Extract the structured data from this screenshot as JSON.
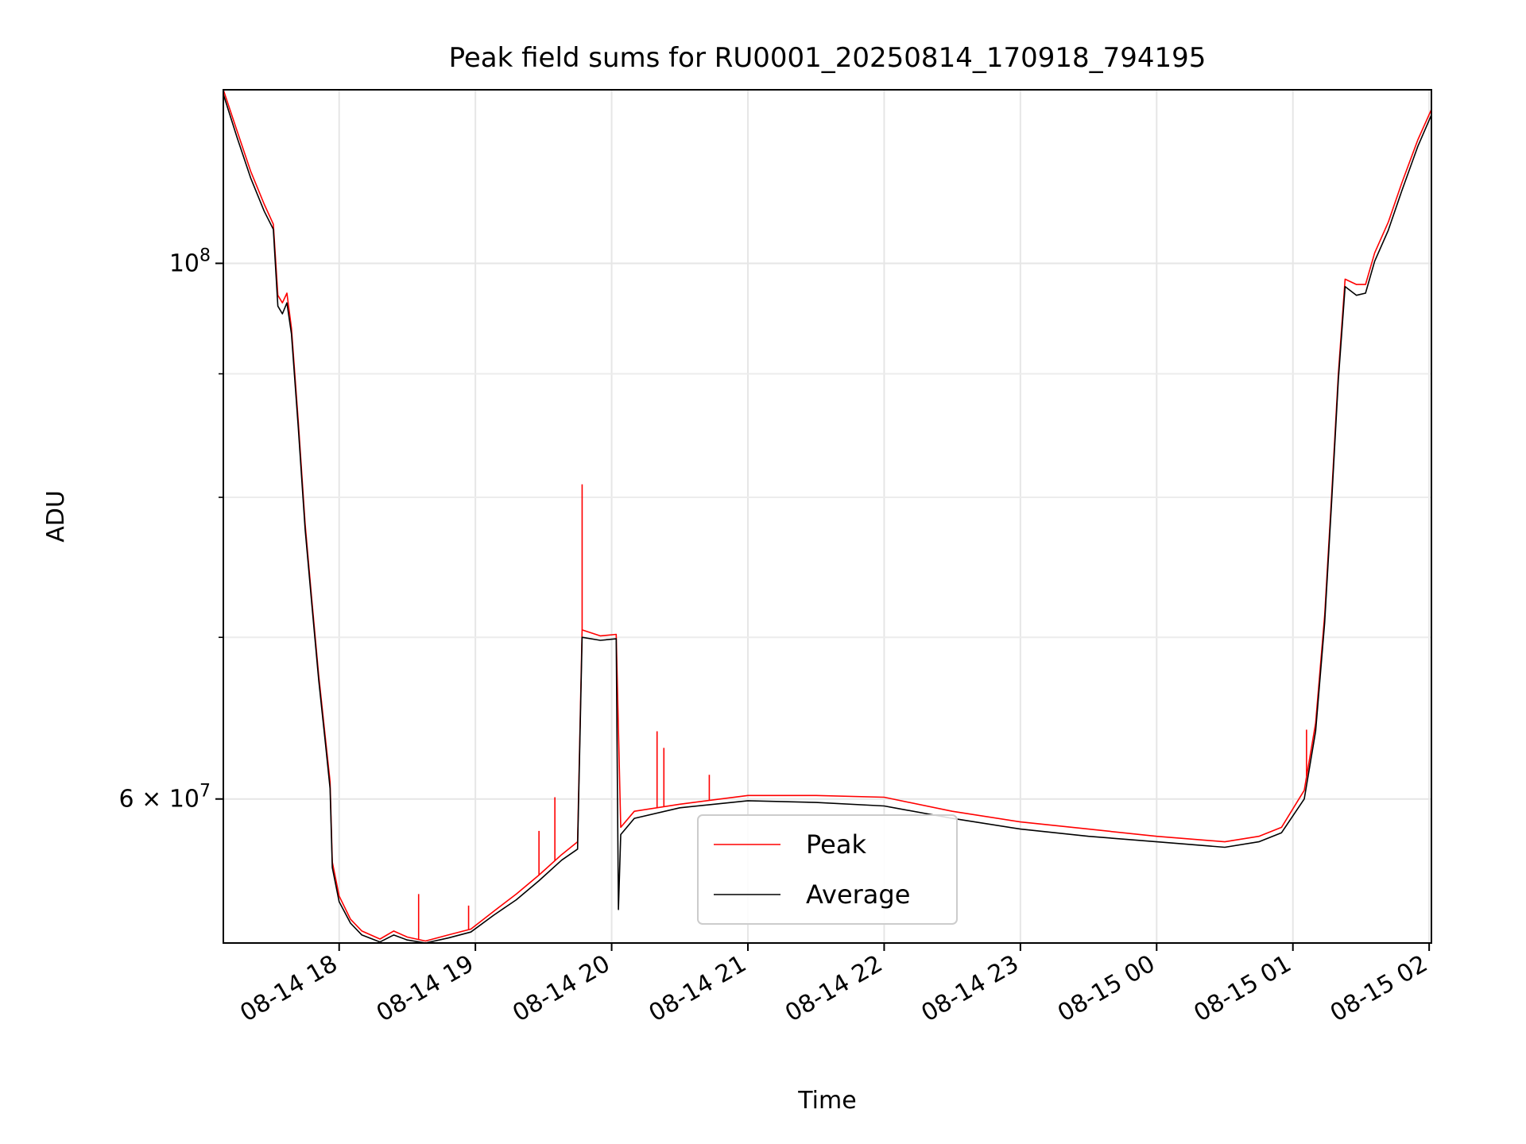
{
  "chart_data": {
    "type": "line",
    "title": "Peak field sums for RU0001_20250814_170918_794195",
    "xlabel": "Time",
    "ylabel": "ADU",
    "yscale": "log",
    "xlim": [
      "2025-08-14 17:09",
      "2025-08-15 02:01"
    ],
    "ylim": [
      52300000,
      118000000
    ],
    "x_ticks": [
      "08-14 18",
      "08-14 19",
      "08-14 20",
      "08-14 21",
      "08-14 22",
      "08-14 23",
      "08-15 00",
      "08-15 01",
      "08-15 02"
    ],
    "y_major_ticks": [
      {
        "value": 100000000,
        "label": "10^8"
      },
      {
        "value": 60000000,
        "label": "6 × 10^7"
      }
    ],
    "y_minor_ticks": [
      70000000,
      80000000,
      90000000
    ],
    "grid": true,
    "legend_position": "lower center",
    "series": [
      {
        "name": "Peak",
        "color": "#ff0000",
        "points": [
          [
            "2025-08-14 17:09",
            118000000
          ],
          [
            "2025-08-14 17:15",
            113500000
          ],
          [
            "2025-08-14 17:21",
            109200000
          ],
          [
            "2025-08-14 17:27",
            105800000
          ],
          [
            "2025-08-14 17:31",
            103800000
          ],
          [
            "2025-08-14 17:33",
            97000000
          ],
          [
            "2025-08-14 17:35",
            96300000
          ],
          [
            "2025-08-14 17:37",
            97200000
          ],
          [
            "2025-08-14 17:39",
            94000000
          ],
          [
            "2025-08-14 17:42",
            86000000
          ],
          [
            "2025-08-14 17:45",
            78000000
          ],
          [
            "2025-08-14 17:48",
            72500000
          ],
          [
            "2025-08-14 17:51",
            67500000
          ],
          [
            "2025-08-14 17:54",
            63500000
          ],
          [
            "2025-08-14 17:56",
            61000000
          ],
          [
            "2025-08-14 17:57",
            56500000
          ],
          [
            "2025-08-14 18:00",
            54700000
          ],
          [
            "2025-08-14 18:05",
            53500000
          ],
          [
            "2025-08-14 18:10",
            52900000
          ],
          [
            "2025-08-14 18:18",
            52500000
          ],
          [
            "2025-08-14 18:24",
            52900000
          ],
          [
            "2025-08-14 18:30",
            52600000
          ],
          [
            "2025-08-14 18:38",
            52400000
          ],
          [
            "2025-08-14 18:48",
            52700000
          ],
          [
            "2025-08-14 18:58",
            53000000
          ],
          [
            "2025-08-14 19:08",
            53900000
          ],
          [
            "2025-08-14 19:18",
            54800000
          ],
          [
            "2025-08-14 19:28",
            55800000
          ],
          [
            "2025-08-14 19:38",
            56900000
          ],
          [
            "2025-08-14 19:45",
            57600000
          ],
          [
            "2025-08-14 19:47",
            70500000
          ],
          [
            "2025-08-14 19:55",
            70100000
          ],
          [
            "2025-08-14 20:02",
            70200000
          ],
          [
            "2025-08-14 20:04",
            58400000
          ],
          [
            "2025-08-14 20:10",
            59300000
          ],
          [
            "2025-08-14 20:30",
            59700000
          ],
          [
            "2025-08-14 21:00",
            60200000
          ],
          [
            "2025-08-14 21:30",
            60200000
          ],
          [
            "2025-08-14 22:00",
            60100000
          ],
          [
            "2025-08-14 22:30",
            59300000
          ],
          [
            "2025-08-14 23:00",
            58700000
          ],
          [
            "2025-08-14 23:30",
            58300000
          ],
          [
            "2025-08-15 00:00",
            57900000
          ],
          [
            "2025-08-15 00:30",
            57600000
          ],
          [
            "2025-08-15 00:45",
            57900000
          ],
          [
            "2025-08-15 00:55",
            58400000
          ],
          [
            "2025-08-15 01:05",
            60500000
          ],
          [
            "2025-08-15 01:10",
            64500000
          ],
          [
            "2025-08-15 01:14",
            71500000
          ],
          [
            "2025-08-15 01:17",
            80000000
          ],
          [
            "2025-08-15 01:20",
            90000000
          ],
          [
            "2025-08-15 01:23",
            98500000
          ],
          [
            "2025-08-15 01:28",
            98000000
          ],
          [
            "2025-08-15 01:32",
            98000000
          ],
          [
            "2025-08-15 01:36",
            101000000
          ],
          [
            "2025-08-15 01:42",
            104000000
          ],
          [
            "2025-08-15 01:48",
            108000000
          ],
          [
            "2025-08-15 01:55",
            112500000
          ],
          [
            "2025-08-15 02:01",
            115800000
          ]
        ],
        "spikes": [
          [
            "2025-08-14 18:35",
            54800000
          ],
          [
            "2025-08-14 18:57",
            54200000
          ],
          [
            "2025-08-14 19:28",
            58200000
          ],
          [
            "2025-08-14 19:35",
            60100000
          ],
          [
            "2025-08-14 19:47",
            81000000
          ],
          [
            "2025-08-14 20:20",
            64000000
          ],
          [
            "2025-08-14 20:23",
            63000000
          ],
          [
            "2025-08-14 20:43",
            61400000
          ],
          [
            "2025-08-15 01:06",
            64100000
          ]
        ]
      },
      {
        "name": "Average",
        "color": "#000000",
        "points": [
          [
            "2025-08-14 17:09",
            117500000
          ],
          [
            "2025-08-14 17:15",
            112800000
          ],
          [
            "2025-08-14 17:21",
            108500000
          ],
          [
            "2025-08-14 17:27",
            105100000
          ],
          [
            "2025-08-14 17:31",
            103300000
          ],
          [
            "2025-08-14 17:33",
            96000000
          ],
          [
            "2025-08-14 17:35",
            95300000
          ],
          [
            "2025-08-14 17:37",
            96300000
          ],
          [
            "2025-08-14 17:39",
            93500000
          ],
          [
            "2025-08-14 17:42",
            85500000
          ],
          [
            "2025-08-14 17:45",
            77600000
          ],
          [
            "2025-08-14 17:48",
            72200000
          ],
          [
            "2025-08-14 17:51",
            67200000
          ],
          [
            "2025-08-14 17:54",
            63200000
          ],
          [
            "2025-08-14 17:56",
            60600000
          ],
          [
            "2025-08-14 17:57",
            56200000
          ],
          [
            "2025-08-14 18:00",
            54400000
          ],
          [
            "2025-08-14 18:05",
            53300000
          ],
          [
            "2025-08-14 18:10",
            52700000
          ],
          [
            "2025-08-14 18:18",
            52350000
          ],
          [
            "2025-08-14 18:24",
            52700000
          ],
          [
            "2025-08-14 18:30",
            52450000
          ],
          [
            "2025-08-14 18:38",
            52300000
          ],
          [
            "2025-08-14 18:48",
            52550000
          ],
          [
            "2025-08-14 18:58",
            52850000
          ],
          [
            "2025-08-14 19:08",
            53700000
          ],
          [
            "2025-08-14 19:18",
            54500000
          ],
          [
            "2025-08-14 19:28",
            55500000
          ],
          [
            "2025-08-14 19:38",
            56600000
          ],
          [
            "2025-08-14 19:45",
            57200000
          ],
          [
            "2025-08-14 19:47",
            70000000
          ],
          [
            "2025-08-14 19:55",
            69800000
          ],
          [
            "2025-08-14 20:02",
            69900000
          ],
          [
            "2025-08-14 20:03",
            54000000
          ],
          [
            "2025-08-14 20:04",
            58000000
          ],
          [
            "2025-08-14 20:10",
            58900000
          ],
          [
            "2025-08-14 20:30",
            59500000
          ],
          [
            "2025-08-14 21:00",
            59900000
          ],
          [
            "2025-08-14 21:30",
            59800000
          ],
          [
            "2025-08-14 22:00",
            59600000
          ],
          [
            "2025-08-14 22:30",
            58900000
          ],
          [
            "2025-08-14 23:00",
            58300000
          ],
          [
            "2025-08-14 23:30",
            57900000
          ],
          [
            "2025-08-15 00:00",
            57600000
          ],
          [
            "2025-08-15 00:30",
            57300000
          ],
          [
            "2025-08-15 00:45",
            57600000
          ],
          [
            "2025-08-15 00:55",
            58100000
          ],
          [
            "2025-08-15 01:05",
            60000000
          ],
          [
            "2025-08-15 01:10",
            64000000
          ],
          [
            "2025-08-15 01:14",
            71000000
          ],
          [
            "2025-08-15 01:17",
            79500000
          ],
          [
            "2025-08-15 01:20",
            89500000
          ],
          [
            "2025-08-15 01:23",
            97800000
          ],
          [
            "2025-08-15 01:28",
            97000000
          ],
          [
            "2025-08-15 01:32",
            97200000
          ],
          [
            "2025-08-15 01:36",
            100200000
          ],
          [
            "2025-08-15 01:42",
            103200000
          ],
          [
            "2025-08-15 01:48",
            107200000
          ],
          [
            "2025-08-15 01:55",
            111800000
          ],
          [
            "2025-08-15 02:01",
            115200000
          ]
        ]
      }
    ]
  }
}
